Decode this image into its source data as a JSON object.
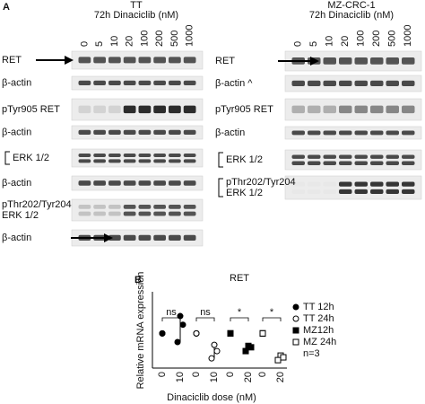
{
  "panel_a": {
    "label": "A",
    "blots": [
      {
        "cell_line": "TT",
        "treatment": "72h Dinaciclib (nM)",
        "doses": [
          "0",
          "5",
          "10",
          "20",
          "100",
          "200",
          "500",
          "1000"
        ],
        "rows": [
          [
            "RET"
          ],
          [
            "β-actin"
          ],
          [
            "pTyr905 RET"
          ],
          [
            "β-actin"
          ],
          [
            "ERK 1/2"
          ],
          [
            "β-actin"
          ],
          [
            "pThr202/Tyr204",
            "ERK 1/2"
          ],
          [
            "β-actin"
          ]
        ]
      },
      {
        "cell_line": "MZ-CRC-1",
        "treatment": "72h Dinaciclib (nM)",
        "doses": [
          "0",
          "5",
          "10",
          "20",
          "100",
          "200",
          "500",
          "1000"
        ],
        "rows": [
          [
            "RET"
          ],
          [
            "β-actin ^"
          ],
          [
            "pTyr905 RET"
          ],
          [
            "β-actin"
          ],
          [
            "ERK 1/2"
          ],
          [
            "pThr202/Tyr204",
            "ERK 1/2"
          ]
        ]
      }
    ]
  },
  "chart_data": {
    "type": "scatter",
    "panel_label": "B",
    "title": "RET",
    "ylabel": "Relative mRNA expression",
    "xlabel": "Dinaciclib dose (nM)",
    "categories": [
      "0",
      "10",
      "0",
      "10",
      "0",
      "20",
      "0",
      "20"
    ],
    "ylim": [
      0,
      2.2
    ],
    "significance": [
      "ns",
      "ns",
      "*",
      "*"
    ],
    "series": [
      {
        "name": "TT 12h",
        "marker": "circle",
        "filled": true,
        "color": "#000000",
        "values": [
          [
            1,
            1,
            1
          ],
          [
            1.5,
            1.25,
            0.75
          ],
          null,
          null,
          null,
          null,
          null,
          null
        ]
      },
      {
        "name": "TT 24h",
        "marker": "circle",
        "filled": false,
        "color": "#000000",
        "values": [
          null,
          null,
          [
            1,
            1,
            1
          ],
          [
            0.67,
            0.49,
            0.28
          ],
          null,
          null,
          null,
          null
        ]
      },
      {
        "name": "MZ12h",
        "marker": "square",
        "filled": true,
        "color": "#000000",
        "values": [
          null,
          null,
          null,
          null,
          [
            1,
            1,
            1
          ],
          [
            0.64,
            0.6,
            0.49
          ],
          null,
          null
        ]
      },
      {
        "name": "MZ 24h",
        "marker": "square",
        "filled": false,
        "color": "#000000",
        "values": [
          null,
          null,
          null,
          null,
          null,
          null,
          [
            1,
            1,
            1
          ],
          [
            0.36,
            0.31,
            0.23
          ]
        ]
      }
    ],
    "note": "n=3"
  }
}
